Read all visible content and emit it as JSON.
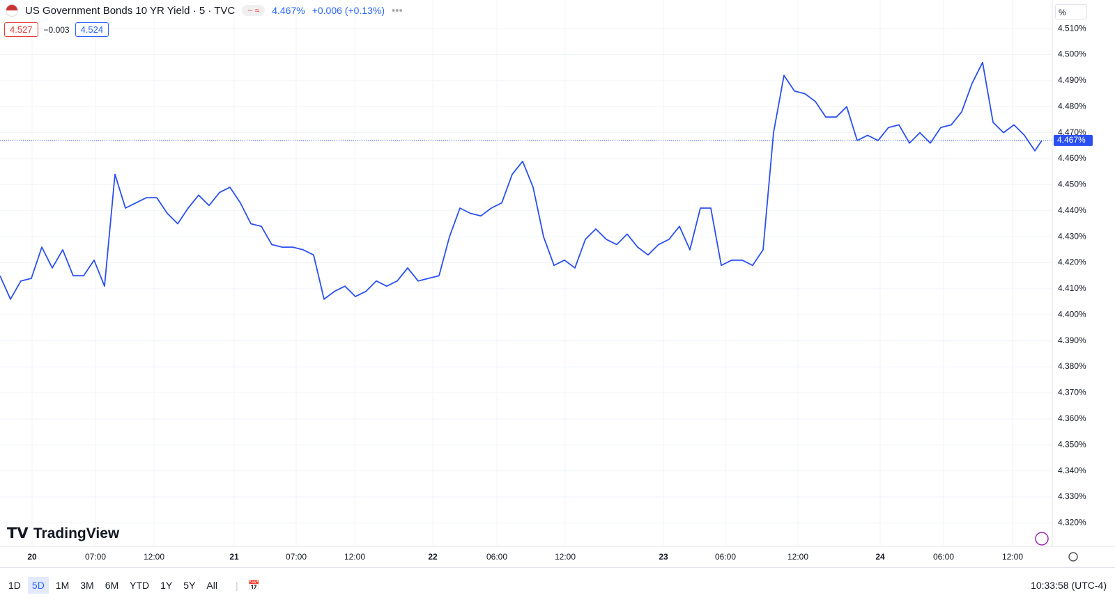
{
  "header": {
    "symbol": "US Government Bonds 10 YR Yield · 5 · TVC",
    "price": "4.467%",
    "change": "+0.006 (+0.13%)",
    "bid": "4.527",
    "spread": "−0.003",
    "ask": "4.524",
    "scale_mode": "%"
  },
  "brand": "TradingView",
  "ranges": [
    "1D",
    "5D",
    "1M",
    "3M",
    "6M",
    "YTD",
    "1Y",
    "5Y",
    "All"
  ],
  "active_range": "5D",
  "clock": "10:33:58 (UTC-4)",
  "chart_data": {
    "type": "line",
    "x": [
      0,
      3,
      6,
      9,
      12,
      15,
      18,
      21,
      24,
      27,
      30,
      33,
      36,
      39,
      42,
      45,
      48,
      51,
      54,
      57,
      60,
      63,
      66,
      69,
      72,
      75,
      78,
      81,
      84,
      87,
      90,
      93,
      96,
      99,
      102,
      105,
      108,
      111,
      114,
      117,
      120,
      123,
      126,
      129,
      132,
      135,
      138,
      141,
      144,
      147,
      150,
      153,
      156,
      159,
      162,
      165,
      168,
      171,
      174,
      177,
      180,
      183,
      186,
      189,
      192,
      195,
      198,
      201,
      204,
      207,
      210,
      213,
      216,
      219,
      222,
      225,
      228,
      231,
      234,
      237,
      240,
      243,
      246,
      249,
      252,
      255,
      258,
      261,
      264,
      267,
      270,
      273,
      276,
      279,
      282,
      285,
      288,
      291,
      294,
      297,
      299
    ],
    "series": [
      {
        "name": "US10Y",
        "color": "#2a4ff0",
        "values": [
          4.415,
          4.406,
          4.413,
          4.414,
          4.426,
          4.418,
          4.425,
          4.415,
          4.415,
          4.421,
          4.411,
          4.454,
          4.441,
          4.443,
          4.445,
          4.445,
          4.439,
          4.435,
          4.441,
          4.446,
          4.442,
          4.447,
          4.449,
          4.443,
          4.435,
          4.434,
          4.427,
          4.426,
          4.426,
          4.425,
          4.423,
          4.406,
          4.409,
          4.411,
          4.407,
          4.409,
          4.413,
          4.411,
          4.413,
          4.418,
          4.413,
          4.414,
          4.415,
          4.43,
          4.441,
          4.439,
          4.438,
          4.441,
          4.443,
          4.454,
          4.459,
          4.449,
          4.43,
          4.419,
          4.421,
          4.418,
          4.429,
          4.433,
          4.429,
          4.427,
          4.431,
          4.426,
          4.423,
          4.427,
          4.429,
          4.434,
          4.425,
          4.441,
          4.441,
          4.419,
          4.421,
          4.421,
          4.419,
          4.425,
          4.47,
          4.492,
          4.486,
          4.485,
          4.482,
          4.476,
          4.476,
          4.48,
          4.467,
          4.469,
          4.467,
          4.472,
          4.473,
          4.466,
          4.47,
          4.466,
          4.472,
          4.473,
          4.478,
          4.489,
          4.497,
          4.474,
          4.47,
          4.473,
          4.469,
          4.463,
          4.467
        ]
      }
    ],
    "last_value": 4.467,
    "last_label": "4.467%",
    "xlim": [
      0,
      302
    ],
    "xticks": [
      {
        "value": 9.2,
        "label": "20"
      },
      {
        "value": 27.4,
        "label": "07:00"
      },
      {
        "value": 44.2,
        "label": "12:00"
      },
      {
        "value": 67.2,
        "label": "21"
      },
      {
        "value": 85,
        "label": "07:00"
      },
      {
        "value": 101.8,
        "label": "12:00"
      },
      {
        "value": 124.2,
        "label": "22"
      },
      {
        "value": 142.6,
        "label": "06:00"
      },
      {
        "value": 162.2,
        "label": "12:00"
      },
      {
        "value": 190.4,
        "label": "23"
      },
      {
        "value": 208.2,
        "label": "06:00"
      },
      {
        "value": 229,
        "label": "12:00"
      },
      {
        "value": 252.6,
        "label": "24"
      },
      {
        "value": 270.8,
        "label": "06:00"
      },
      {
        "value": 290.6,
        "label": "12:00"
      }
    ],
    "ylim": [
      4.311,
      4.521
    ],
    "yticks": [
      {
        "value": 4.32,
        "label": "4.320%"
      },
      {
        "value": 4.33,
        "label": "4.330%"
      },
      {
        "value": 4.34,
        "label": "4.340%"
      },
      {
        "value": 4.35,
        "label": "4.350%"
      },
      {
        "value": 4.36,
        "label": "4.360%"
      },
      {
        "value": 4.37,
        "label": "4.370%"
      },
      {
        "value": 4.38,
        "label": "4.380%"
      },
      {
        "value": 4.39,
        "label": "4.390%"
      },
      {
        "value": 4.4,
        "label": "4.400%"
      },
      {
        "value": 4.41,
        "label": "4.410%"
      },
      {
        "value": 4.42,
        "label": "4.420%"
      },
      {
        "value": 4.43,
        "label": "4.430%"
      },
      {
        "value": 4.44,
        "label": "4.440%"
      },
      {
        "value": 4.45,
        "label": "4.450%"
      },
      {
        "value": 4.46,
        "label": "4.460%"
      },
      {
        "value": 4.47,
        "label": "4.470%"
      },
      {
        "value": 4.48,
        "label": "4.480%"
      },
      {
        "value": 4.49,
        "label": "4.490%"
      },
      {
        "value": 4.5,
        "label": "4.500%"
      },
      {
        "value": 4.51,
        "label": "4.510%"
      }
    ],
    "grid": true
  }
}
